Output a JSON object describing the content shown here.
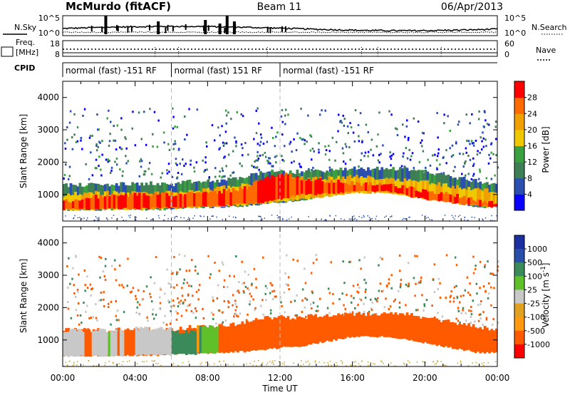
{
  "header": {
    "station": "McMurdo (fitACF)",
    "beam": "Beam 11",
    "date": "06/Apr/2013"
  },
  "top_panel": {
    "left_label": "N.Sky",
    "left_ticks": [
      "10^5",
      "10^0"
    ],
    "right_ticks": [
      "10^5",
      "10^0"
    ],
    "right_label": "N.Search"
  },
  "freq_panel": {
    "label_line1": "Freq.",
    "label_line2": "[MHz]",
    "left_ticks": [
      "18",
      "8"
    ],
    "right_ticks": [
      "60",
      "0"
    ],
    "right_label": "Nave"
  },
  "cpid_panel": {
    "label": "CPID",
    "segments": [
      {
        "start": 0,
        "end": 6,
        "text": "normal (fast) -151 RF"
      },
      {
        "start": 6,
        "end": 12,
        "text": "normal (fast) 151 RF"
      },
      {
        "start": 12,
        "end": 24,
        "text": "normal (fast) -151 RF"
      }
    ]
  },
  "colors": {
    "power": [
      "#0a00ff",
      "#2a4fb0",
      "#3f7f55",
      "#3aa040",
      "#f0c800",
      "#f0a000",
      "#ff6a00",
      "#ff0000"
    ],
    "velocity": [
      "#ff0000",
      "#ff5a00",
      "#ff9a10",
      "#e0a020",
      "#c8c8c8",
      "#5fc02a",
      "#3a8a5a",
      "#2a4faa",
      "#1c2fa0"
    ]
  },
  "chart_data": [
    {
      "type": "heatmap",
      "name": "power",
      "xlabel": "",
      "ylabel": "Slant Range [km]",
      "xlim": [
        0,
        24
      ],
      "ylim": [
        180,
        4500
      ],
      "y_ticks": [
        "1000",
        "2000",
        "3000",
        "4000"
      ],
      "colorbar_label": "Power [dB]",
      "colorbar_ticks": [
        "4",
        "8",
        "12",
        "16",
        "20",
        "24",
        "28"
      ],
      "colorbar_range": [
        0,
        32
      ],
      "layers": [
        {
          "t": [
            0,
            1,
            2,
            3,
            4,
            5,
            6,
            7,
            8,
            9,
            10,
            11,
            12,
            13,
            14,
            15,
            16,
            17,
            18,
            19,
            20,
            21,
            22,
            23,
            24
          ],
          "lo": [
            500,
            520,
            520,
            540,
            520,
            520,
            560,
            600,
            600,
            620,
            640,
            700,
            760,
            800,
            900,
            1000,
            1100,
            1100,
            1100,
            1000,
            900,
            800,
            700,
            600,
            600
          ],
          "hi": [
            1300,
            1300,
            1300,
            1320,
            1320,
            1350,
            1300,
            1400,
            1400,
            1450,
            1550,
            1700,
            1700,
            1700,
            1750,
            1750,
            1800,
            1800,
            1800,
            1800,
            1700,
            1600,
            1500,
            1400,
            1300
          ],
          "value": 10
        },
        {
          "t": [
            0,
            2,
            4,
            6,
            8,
            10,
            12,
            14,
            16,
            18,
            20,
            22,
            24
          ],
          "lo": [
            520,
            540,
            540,
            580,
            620,
            680,
            780,
            900,
            1050,
            1050,
            850,
            700,
            600
          ],
          "hi": [
            1000,
            1050,
            1050,
            1050,
            1150,
            1300,
            1500,
            1500,
            1550,
            1500,
            1400,
            1200,
            1100
          ],
          "value": 20
        },
        {
          "t": [
            0,
            2,
            4,
            6,
            8,
            10,
            11,
            12,
            13,
            14,
            16,
            18,
            19,
            20,
            22,
            23,
            24
          ],
          "lo": [
            540,
            560,
            560,
            600,
            640,
            700,
            760,
            850,
            1000,
            1000,
            1100,
            1100,
            950,
            850,
            700,
            650,
            600
          ],
          "hi": [
            780,
            950,
            1000,
            1000,
            1050,
            1200,
            1500,
            1650,
            1500,
            1450,
            1350,
            1300,
            1200,
            1100,
            950,
            800,
            750
          ],
          "value": 28
        }
      ]
    },
    {
      "type": "heatmap",
      "name": "velocity",
      "xlabel": "Time UT",
      "ylabel": "Slant Range [km]",
      "xlim": [
        0,
        24
      ],
      "ylim": [
        180,
        4500
      ],
      "x_ticks": [
        "00:00",
        "04:00",
        "08:00",
        "12:00",
        "16:00",
        "20:00",
        "00:00"
      ],
      "y_ticks": [
        "1000",
        "2000",
        "3000",
        "4000"
      ],
      "colorbar_label": "Velocity [m s^-1]",
      "colorbar_ticks": [
        "1000",
        "500",
        "100",
        "25",
        "-25",
        "-100",
        "-500",
        "-1000"
      ],
      "layers": [
        {
          "t": [
            0,
            1,
            2,
            3,
            4,
            5,
            6,
            7,
            8,
            9,
            10,
            11,
            12,
            13,
            14,
            15,
            16,
            17,
            18,
            19,
            20,
            21,
            22,
            23,
            24
          ],
          "lo": [
            500,
            520,
            520,
            540,
            520,
            520,
            560,
            600,
            600,
            620,
            640,
            700,
            760,
            800,
            900,
            1000,
            1100,
            1100,
            1100,
            1000,
            900,
            800,
            700,
            600,
            600
          ],
          "hi": [
            1300,
            1300,
            1300,
            1320,
            1320,
            1350,
            1300,
            1400,
            1400,
            1450,
            1550,
            1700,
            1700,
            1700,
            1750,
            1750,
            1800,
            1800,
            1800,
            1800,
            1700,
            1600,
            1500,
            1400,
            1300
          ],
          "value": -150
        }
      ],
      "blocks": [
        {
          "t0": 0,
          "t1": 1.2,
          "lo": 500,
          "hi": 1300,
          "value": 0
        },
        {
          "t0": 1.2,
          "t1": 1.6,
          "lo": 500,
          "hi": 1300,
          "value": -300
        },
        {
          "t0": 1.6,
          "t1": 3.4,
          "lo": 500,
          "hi": 1300,
          "value": 0
        },
        {
          "t0": 3.4,
          "t1": 4.0,
          "lo": 520,
          "hi": 1300,
          "value": -300
        },
        {
          "t0": 4.0,
          "t1": 6.0,
          "lo": 540,
          "hi": 1350,
          "value": 0
        },
        {
          "t0": 6.0,
          "t1": 7.4,
          "lo": 560,
          "hi": 1250,
          "value": 300
        },
        {
          "t0": 7.4,
          "t1": 8.6,
          "lo": 600,
          "hi": 1400,
          "value": 60
        },
        {
          "t0": 8.6,
          "t1": 9.2,
          "lo": 620,
          "hi": 1400,
          "value": -150
        }
      ]
    }
  ]
}
